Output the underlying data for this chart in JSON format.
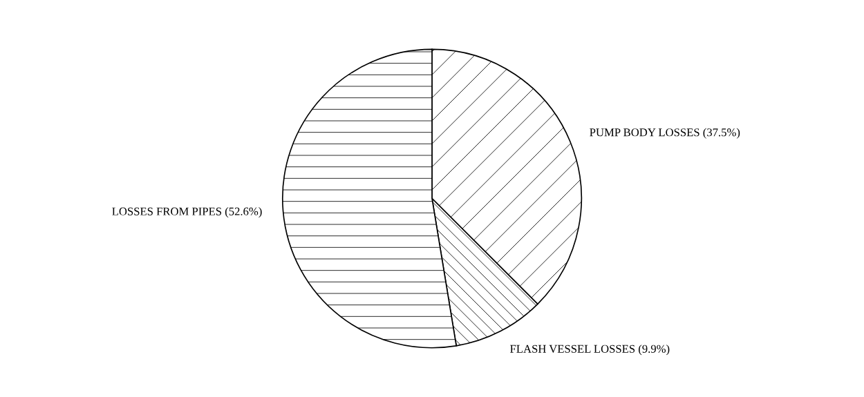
{
  "chart_data": {
    "type": "pie",
    "categories": [
      "PUMP BODY LOSSES (37.5%)",
      "FLASH VESSEL LOSSES (9.9%)",
      "LOSSES FROM PIPES (52.6%)"
    ],
    "values": [
      37.5,
      9.9,
      52.6
    ]
  }
}
